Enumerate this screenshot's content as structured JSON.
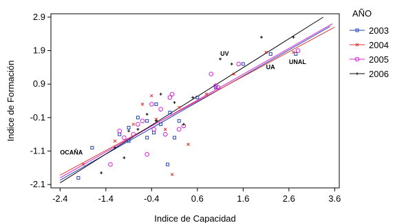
{
  "chart_data": {
    "type": "scatter",
    "xlabel": "Indice de Capacidad",
    "ylabel": "Indice de Formación",
    "xlim": [
      -2.6,
      3.7
    ],
    "ylim": [
      -2.2,
      3.0
    ],
    "x_ticks": [
      "-2.4",
      "-1.4",
      "-0.4",
      "0.6",
      "1.6",
      "2.6",
      "3.6"
    ],
    "y_ticks": [
      "-2.1",
      "-1.1",
      "-0.1",
      "0.9",
      "1.9",
      "2.9"
    ],
    "grid": false,
    "legend_title": "AÑO",
    "legend_position": "right",
    "annotations": [
      {
        "text": "OCAÑA",
        "x": -2.4,
        "y": -1.2
      },
      {
        "text": "UV",
        "x": 1.1,
        "y": 1.75
      },
      {
        "text": "UA",
        "x": 2.1,
        "y": 1.35
      },
      {
        "text": "UNAL",
        "x": 2.6,
        "y": 1.5
      }
    ],
    "series": [
      {
        "name": "2003",
        "color": "#1f3fb5",
        "marker": "square",
        "points": [
          [
            -2.0,
            -1.9
          ],
          [
            -1.7,
            -1.0
          ],
          [
            -1.1,
            -0.6
          ],
          [
            -0.9,
            -0.4
          ],
          [
            -0.7,
            -0.1
          ],
          [
            -0.5,
            -0.2
          ],
          [
            -0.35,
            -0.55
          ],
          [
            -0.2,
            -0.3
          ],
          [
            -0.5,
            -0.7
          ],
          [
            0.0,
            0.05
          ],
          [
            -0.05,
            -1.5
          ],
          [
            0.2,
            -0.2
          ],
          [
            0.6,
            0.5
          ],
          [
            1.0,
            0.8
          ],
          [
            1.6,
            1.5
          ],
          [
            2.2,
            1.8
          ],
          [
            2.75,
            1.8
          ],
          [
            -0.9,
            -0.8
          ],
          [
            -0.3,
            0.3
          ],
          [
            0.1,
            -0.7
          ]
        ]
      },
      {
        "name": "2004",
        "color": "#e0302a",
        "marker": "x",
        "points": [
          [
            -1.9,
            -1.5
          ],
          [
            -1.2,
            -0.8
          ],
          [
            -0.8,
            -0.3
          ],
          [
            -0.4,
            0.55
          ],
          [
            -0.3,
            -0.15
          ],
          [
            -0.1,
            -0.45
          ],
          [
            0.05,
            -1.8
          ],
          [
            0.4,
            -0.9
          ],
          [
            0.8,
            0.6
          ],
          [
            1.4,
            1.2
          ],
          [
            2.1,
            1.85
          ],
          [
            2.7,
            1.85
          ],
          [
            -0.6,
            0.3
          ],
          [
            0.2,
            0.2
          ]
        ]
      },
      {
        "name": "2005",
        "color": "#d61fd6",
        "marker": "circle",
        "points": [
          [
            -1.3,
            -1.5
          ],
          [
            -1.1,
            -0.5
          ],
          [
            -1.0,
            -0.7
          ],
          [
            -0.7,
            -0.3
          ],
          [
            -0.6,
            -0.2
          ],
          [
            -0.5,
            -1.2
          ],
          [
            -0.35,
            -0.45
          ],
          [
            -0.2,
            0.15
          ],
          [
            -0.1,
            -0.6
          ],
          [
            0.0,
            0.5
          ],
          [
            0.05,
            0.6
          ],
          [
            0.2,
            -0.45
          ],
          [
            0.3,
            -0.35
          ],
          [
            0.9,
            1.2
          ],
          [
            1.0,
            0.85
          ],
          [
            1.05,
            0.8
          ],
          [
            1.5,
            1.5
          ],
          [
            2.8,
            1.9
          ],
          [
            -0.8,
            -0.6
          ],
          [
            -0.4,
            0.3
          ]
        ]
      },
      {
        "name": "2006",
        "color": "#000000",
        "marker": "plus",
        "points": [
          [
            -1.5,
            -1.75
          ],
          [
            -1.2,
            -1.0
          ],
          [
            -0.9,
            -0.5
          ],
          [
            -0.7,
            -0.45
          ],
          [
            -0.5,
            0.0
          ],
          [
            -0.2,
            0.6
          ],
          [
            0.1,
            0.35
          ],
          [
            0.3,
            -0.3
          ],
          [
            0.5,
            0.5
          ],
          [
            1.1,
            1.65
          ],
          [
            1.35,
            1.5
          ],
          [
            2.0,
            2.3
          ],
          [
            2.7,
            2.3
          ],
          [
            -1.0,
            -1.3
          ],
          [
            -0.3,
            -0.2
          ]
        ]
      }
    ],
    "regression_lines": [
      {
        "name": "2003",
        "color": "#1f3fb5",
        "x": [
          -2.4,
          3.5
        ],
        "y": [
          -1.97,
          2.62
        ]
      },
      {
        "name": "2004",
        "color": "#e0302a",
        "x": [
          -2.4,
          3.6
        ],
        "y": [
          -1.82,
          2.6
        ]
      },
      {
        "name": "2005",
        "color": "#d61fd6",
        "x": [
          -2.4,
          3.55
        ],
        "y": [
          -1.9,
          2.7
        ]
      },
      {
        "name": "2006",
        "color": "#000000",
        "x": [
          -2.4,
          3.35
        ],
        "y": [
          -2.05,
          2.9
        ]
      }
    ]
  }
}
